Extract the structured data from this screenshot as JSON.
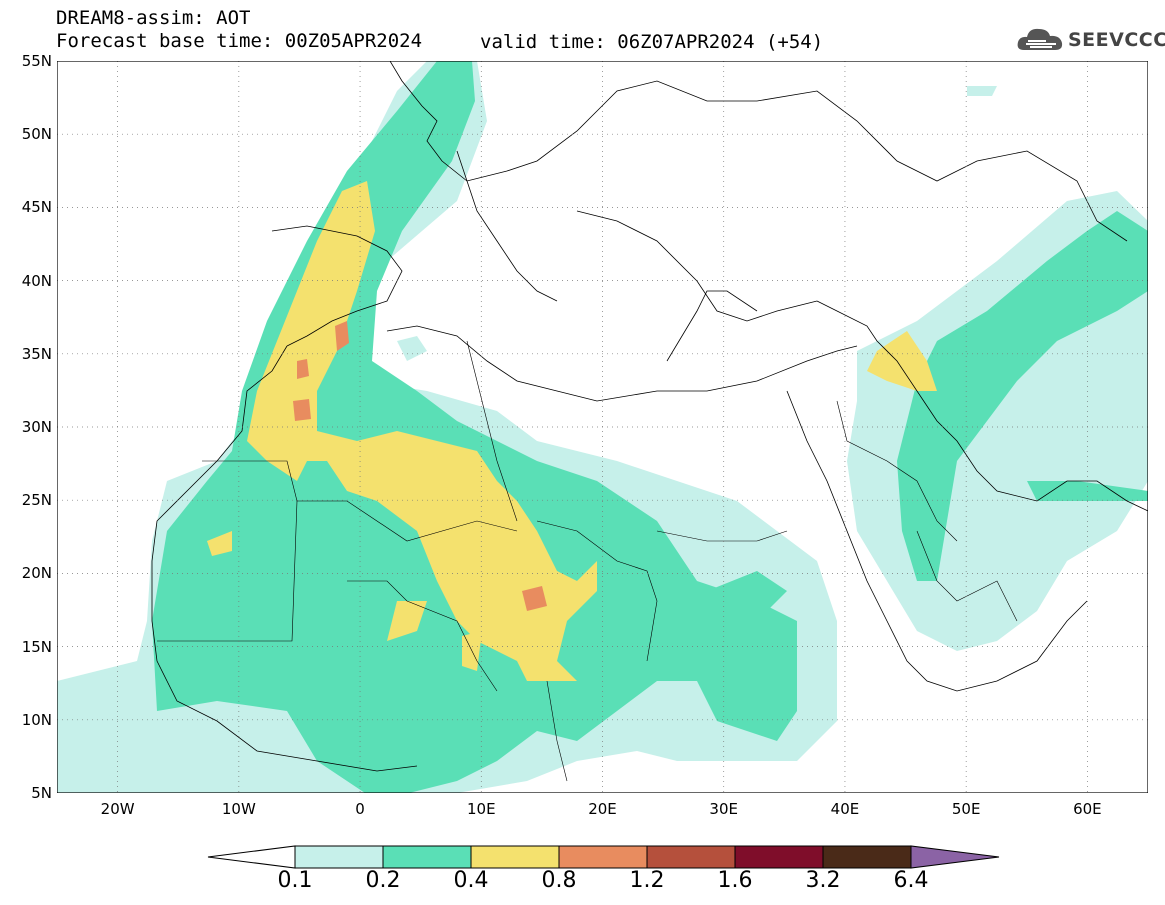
{
  "header": {
    "title": "DREAM8-assim: AOT",
    "base_time": "Forecast base time: 00Z05APR2024",
    "valid_time": "valid time: 06Z07APR2024 (+54)"
  },
  "logo": {
    "text": "SEEVCCC",
    "icon": "cloud-icon"
  },
  "map": {
    "lat_labels": [
      "55N",
      "50N",
      "45N",
      "40N",
      "35N",
      "30N",
      "25N",
      "20N",
      "15N",
      "10N",
      "5N"
    ],
    "lon_labels": [
      "20W",
      "10W",
      "0",
      "10E",
      "20E",
      "30E",
      "40E",
      "50E",
      "60E"
    ],
    "lat_range": [
      5,
      55
    ],
    "lon_range": [
      -25,
      65
    ],
    "grid": "dotted"
  },
  "legend": {
    "levels": [
      "0.1",
      "0.2",
      "0.4",
      "0.8",
      "1.2",
      "1.6",
      "3.2",
      "6.4"
    ],
    "colors": [
      "#c6f0ea",
      "#5adfb6",
      "#f4e16e",
      "#e88c5f",
      "#b5503c",
      "#7f0d2a",
      "#4a2a18",
      "#8b63a5"
    ]
  }
}
